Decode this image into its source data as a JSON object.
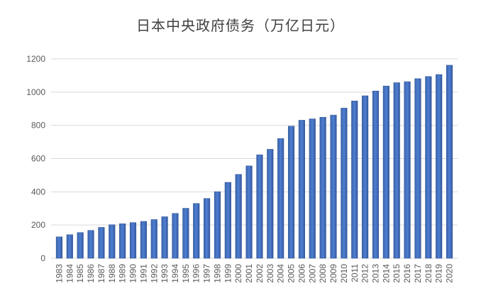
{
  "chart_data": {
    "type": "bar",
    "title": "日本中央政府债务（万亿日元）",
    "categories": [
      "1983",
      "1984",
      "1985",
      "1986",
      "1987",
      "1988",
      "1989",
      "1990",
      "1991",
      "1992",
      "1993",
      "1994",
      "1995",
      "1996",
      "1997",
      "1998",
      "1999",
      "2000",
      "2001",
      "2002",
      "2003",
      "2004",
      "2005",
      "2006",
      "2007",
      "2008",
      "2009",
      "2010",
      "2011",
      "2012",
      "2013",
      "2014",
      "2015",
      "2016",
      "2017",
      "2018",
      "2019",
      "2020"
    ],
    "values": [
      129,
      142,
      155,
      168,
      186,
      202,
      208,
      215,
      222,
      233,
      250,
      270,
      301,
      330,
      360,
      401,
      457,
      505,
      556,
      623,
      656,
      721,
      795,
      831,
      839,
      849,
      862,
      904,
      947,
      978,
      1007,
      1037,
      1057,
      1063,
      1081,
      1094,
      1106,
      1162
    ],
    "ylim": [
      0,
      1200
    ],
    "yticks": [
      0,
      200,
      400,
      600,
      800,
      1000,
      1200
    ],
    "grid": true,
    "legend": "none",
    "bar_color": "#4472c4"
  }
}
